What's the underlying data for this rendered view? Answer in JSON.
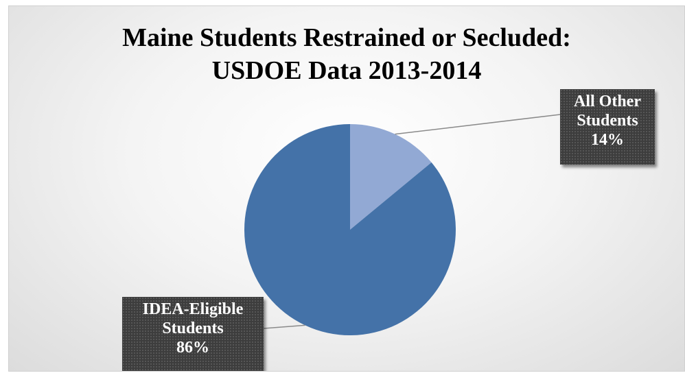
{
  "chart_data": {
    "type": "pie",
    "title": [
      "Maine Students Restrained or Secluded:",
      "USDOE Data 2013-2014"
    ],
    "series": [
      {
        "values": [
          14,
          86
        ],
        "labels": [
          "All Other Students",
          "IDEA-Eligible Students"
        ],
        "percent_labels": [
          "14%",
          "86%"
        ]
      }
    ],
    "colors": [
      "#92a9d4",
      "#4472a8"
    ],
    "start_slice": "All Other Students at 12 o'clock, clockwise",
    "legend": "none",
    "data_labels": "callout boxes with leader lines"
  },
  "labels": {
    "other": {
      "line1": "All Other",
      "line2": "Students",
      "pct": "14%"
    },
    "idea": {
      "line1": "IDEA-Eligible",
      "line2": "Students",
      "pct": "86%"
    }
  }
}
